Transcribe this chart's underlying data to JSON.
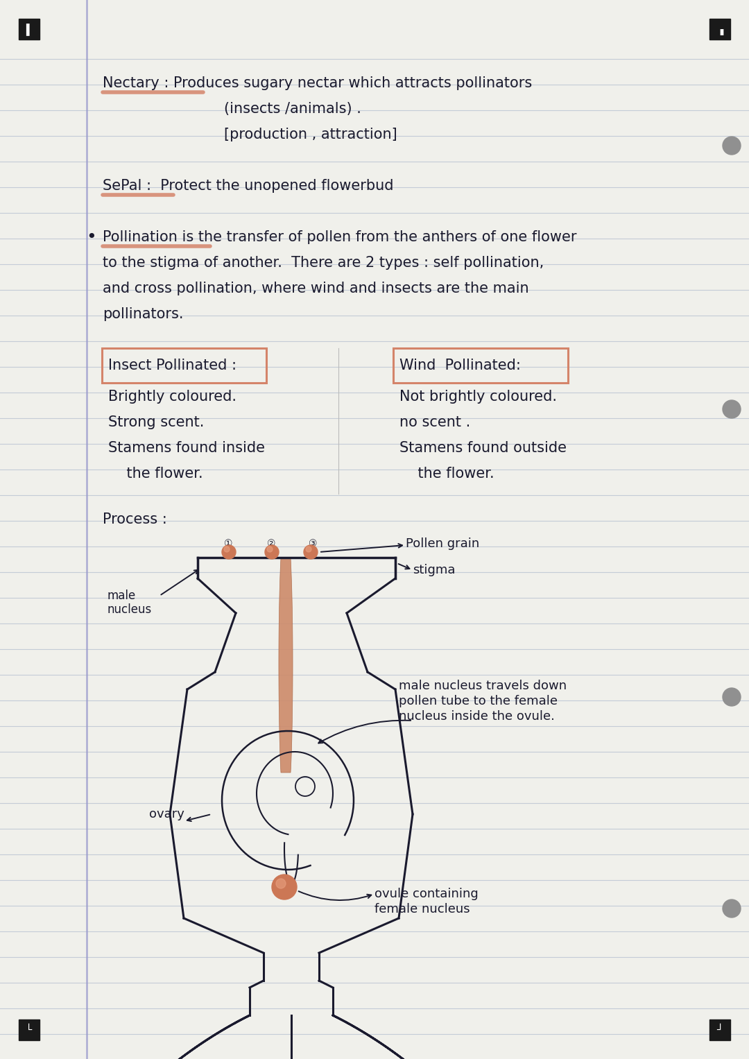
{
  "bg_color": "#f0f0eb",
  "line_color": "#c0c8d5",
  "text_color": "#1a1a2e",
  "highlight_color": "#d4846a",
  "figsize": [
    10.8,
    15.27
  ],
  "dpi": 100,
  "lines": {
    "nectary_heading": "Nectary : Produces sugary nectar which attracts pollinators",
    "nectary_line2": "(insects /animals) .",
    "nectary_line3": "[production , attraction]",
    "sepal_heading": "SePal :  Protect the unopened flowerbud",
    "pollination_line1": "Pollination is the transfer of pollen from the anthers of one flower",
    "pollination_line2": "to the stigma of another.  There are 2 types : self pollination,",
    "pollination_line3": "and cross pollination, where wind and insects are the main",
    "pollination_line4": "pollinators.",
    "insect_heading": "Insect Pollinated :",
    "wind_heading": "Wind  Pollinated:",
    "insect_1": "Brightly coloured.",
    "insect_2": "Strong scent.",
    "insect_3": "Stamens found inside",
    "insect_4": "    the flower.",
    "wind_1": "Not brightly coloured.",
    "wind_2": "no scent .",
    "wind_3": "Stamens found outside",
    "wind_4": "    the flower.",
    "process": "Process :",
    "pollen_grain_label": "Pollen grain",
    "stigma_label": "stigma",
    "male_nucleus_label": "male\nnucleus",
    "male_nucleus_desc1": "male nucleus travels down",
    "male_nucleus_desc2": "pollen tube to the female",
    "male_nucleus_desc3": "nucleus inside the ovule.",
    "ovary_label": "ovary",
    "ovule_label": "ovule containing",
    "ovule_label2": "female nucleus"
  }
}
